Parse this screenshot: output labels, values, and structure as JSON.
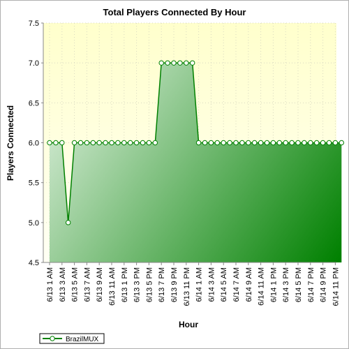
{
  "chart_data": {
    "type": "area",
    "title": "Total Players Connected By Hour",
    "xlabel": "Hour",
    "ylabel": "Players Connected",
    "ylim": [
      4.5,
      7.5
    ],
    "yticks": [
      "4.5",
      "5.0",
      "5.5",
      "6.0",
      "6.5",
      "7.0",
      "7.5"
    ],
    "grid": true,
    "legend_position": "bottom-left",
    "colors": {
      "plot_bg_top": "#ffffcc",
      "plot_bg_bottom": "#fffff4",
      "line": "#008000",
      "fill_light": "#e8f5e8",
      "fill_dark": "#008000",
      "marker_fill": "#ffffff"
    },
    "x_labels": [
      "6/13 1 AM",
      "6/13 3 AM",
      "6/13 5 AM",
      "6/13 7 AM",
      "6/13 9 AM",
      "6/13 11 AM",
      "6/13 1 PM",
      "6/13 3 PM",
      "6/13 5 PM",
      "6/13 7 PM",
      "6/13 9 PM",
      "6/13 11 PM",
      "6/14 1 AM",
      "6/14 3 AM",
      "6/14 5 AM",
      "6/14 7 AM",
      "6/14 9 AM",
      "6/14 11 AM",
      "6/14 1 PM",
      "6/14 3 PM",
      "6/14 5 PM",
      "6/14 7 PM",
      "6/14 9 PM",
      "6/14 11 PM"
    ],
    "series": [
      {
        "name": "BrazilMUX",
        "values": [
          6,
          6,
          6,
          5,
          6,
          6,
          6,
          6,
          6,
          6,
          6,
          6,
          6,
          6,
          6,
          6,
          6,
          6,
          7,
          7,
          7,
          7,
          7,
          7,
          6,
          6,
          6,
          6,
          6,
          6,
          6,
          6,
          6,
          6,
          6,
          6,
          6,
          6,
          6,
          6,
          6,
          6,
          6,
          6,
          6,
          6,
          6,
          6
        ]
      }
    ]
  }
}
